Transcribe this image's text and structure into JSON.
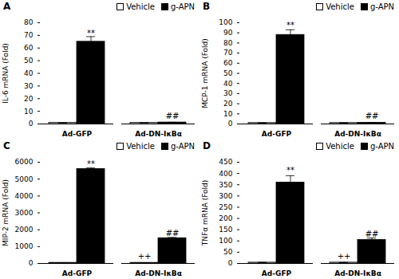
{
  "chart_data": [
    {
      "type": "bar",
      "title": "A",
      "ylabel": "IL-6 mRNA (Fold)",
      "categories": [
        "Ad-GFP",
        "Ad-DN-IκBα"
      ],
      "series": [
        {
          "name": "Vehicle",
          "color": "white",
          "values": [
            1.0,
            1.0
          ],
          "errors": [
            0.15,
            0.1
          ]
        },
        {
          "name": "g-APN",
          "color": "black",
          "values": [
            65,
            1.2
          ],
          "errors": [
            4.0,
            0.1
          ]
        }
      ],
      "ylim": [
        0,
        80
      ],
      "yticks": [
        0,
        10,
        20,
        30,
        40,
        50,
        60,
        70,
        80
      ],
      "annotations": [
        {
          "text": "**",
          "category": "Ad-GFP",
          "series": "g-APN",
          "y": 69
        },
        {
          "text": "##",
          "category": "Ad-DN-IκBα",
          "series": "g-APN",
          "y": 3.5
        }
      ],
      "legend": "upper right"
    },
    {
      "type": "bar",
      "title": "B",
      "ylabel": "MCP-1 mRNA (Fold)",
      "categories": [
        "Ad-GFP",
        "Ad-DN-IκBα"
      ],
      "series": [
        {
          "name": "Vehicle",
          "color": "white",
          "values": [
            1.0,
            1.0
          ],
          "errors": [
            0.15,
            0.1
          ]
        },
        {
          "name": "g-APN",
          "color": "black",
          "values": [
            88,
            1.2
          ],
          "errors": [
            5.0,
            0.1
          ]
        }
      ],
      "ylim": [
        0,
        100
      ],
      "yticks": [
        0,
        10,
        20,
        30,
        40,
        50,
        60,
        70,
        80,
        90,
        100
      ],
      "annotations": [
        {
          "text": "**",
          "category": "Ad-GFP",
          "series": "g-APN",
          "y": 94
        },
        {
          "text": "##",
          "category": "Ad-DN-IκBα",
          "series": "g-APN",
          "y": 4.5
        }
      ],
      "legend": "upper right"
    },
    {
      "type": "bar",
      "title": "C",
      "ylabel": "MIP-2 mRNA (Fold)",
      "categories": [
        "Ad-GFP",
        "Ad-DN-IκBα"
      ],
      "series": [
        {
          "name": "Vehicle",
          "color": "white",
          "values": [
            40,
            40
          ],
          "errors": [
            5,
            5
          ]
        },
        {
          "name": "g-APN",
          "color": "black",
          "values": [
            5600,
            1500
          ],
          "errors": [
            60,
            40
          ]
        }
      ],
      "ylim": [
        0,
        6000
      ],
      "yticks": [
        0,
        1000,
        2000,
        3000,
        4000,
        5000,
        6000
      ],
      "annotations": [
        {
          "text": "**",
          "category": "Ad-GFP",
          "series": "g-APN",
          "y": 5700
        },
        {
          "text": "##",
          "category": "Ad-DN-IκBα",
          "series": "g-APN",
          "y": 1580
        },
        {
          "text": "++",
          "category": "Ad-DN-IκBα",
          "series": "Vehicle",
          "y": 200
        }
      ],
      "legend": "upper right"
    },
    {
      "type": "bar",
      "title": "D",
      "ylabel": "TNFα mRNA (Fold)",
      "categories": [
        "Ad-GFP",
        "Ad-DN-IκBα"
      ],
      "series": [
        {
          "name": "Vehicle",
          "color": "white",
          "values": [
            4,
            4
          ],
          "errors": [
            1,
            1
          ]
        },
        {
          "name": "g-APN",
          "color": "black",
          "values": [
            360,
            105
          ],
          "errors": [
            30,
            8
          ]
        }
      ],
      "ylim": [
        0,
        450
      ],
      "yticks": [
        0,
        50,
        100,
        150,
        200,
        250,
        300,
        350,
        400,
        450
      ],
      "annotations": [
        {
          "text": "**",
          "category": "Ad-GFP",
          "series": "g-APN",
          "y": 400
        },
        {
          "text": "##",
          "category": "Ad-DN-IκBα",
          "series": "g-APN",
          "y": 116
        },
        {
          "text": "++",
          "category": "Ad-DN-IκBα",
          "series": "Vehicle",
          "y": 15
        }
      ],
      "legend": "upper right"
    }
  ]
}
